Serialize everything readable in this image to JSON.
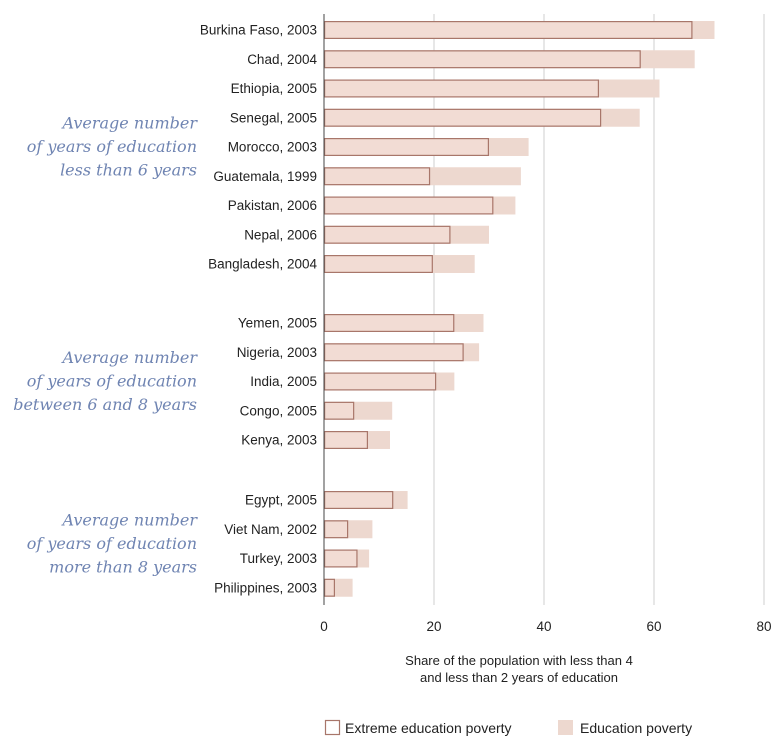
{
  "chart_data": {
    "type": "bar",
    "orientation": "horizontal",
    "xlabel": [
      "Share of the population with less than 4",
      "and less than 2 years of education"
    ],
    "xlim": [
      0,
      80
    ],
    "xticks": [
      0,
      20,
      40,
      60,
      80
    ],
    "grid": true,
    "legend_position": "bottom",
    "colors": {
      "extreme_fill": "#f2dcd4",
      "extreme_stroke": "#a8766a",
      "poverty_fill": "#edd8cf",
      "group_label": "#6f84b2",
      "grid": "#cfcfcf"
    },
    "legend": [
      {
        "key": "extreme",
        "label": "Extreme education poverty"
      },
      {
        "key": "poverty",
        "label": "Education poverty"
      }
    ],
    "groups": [
      {
        "label": [
          "Average number",
          "of years of education",
          "less than 6 years"
        ],
        "categories": [
          {
            "name": "Burkina Faso, 2003",
            "extreme": 67,
            "poverty": 71
          },
          {
            "name": "Chad, 2004",
            "extreme": 57.6,
            "poverty": 67.4
          },
          {
            "name": "Ethiopia, 2005",
            "extreme": 50,
            "poverty": 61
          },
          {
            "name": "Senegal, 2005",
            "extreme": 50.4,
            "poverty": 57.4
          },
          {
            "name": "Morocco, 2003",
            "extreme": 30,
            "poverty": 37.2
          },
          {
            "name": "Guatemala, 1999",
            "extreme": 19.3,
            "poverty": 35.8
          },
          {
            "name": "Pakistan, 2006",
            "extreme": 30.8,
            "poverty": 34.8
          },
          {
            "name": "Nepal, 2006",
            "extreme": 23,
            "poverty": 30
          },
          {
            "name": "Bangladesh, 2004",
            "extreme": 19.8,
            "poverty": 27.4
          }
        ]
      },
      {
        "label": [
          "Average number",
          "of years of education",
          "between 6 and 8 years"
        ],
        "categories": [
          {
            "name": "Yemen, 2005",
            "extreme": 23.7,
            "poverty": 29
          },
          {
            "name": "Nigeria, 2003",
            "extreme": 25.4,
            "poverty": 28.2
          },
          {
            "name": "India, 2005",
            "extreme": 20.4,
            "poverty": 23.7
          },
          {
            "name": "Congo, 2005",
            "extreme": 5.5,
            "poverty": 12.4
          },
          {
            "name": "Kenya, 2003",
            "extreme": 8,
            "poverty": 12
          }
        ]
      },
      {
        "label": [
          "Average number",
          "of years of education",
          "more than 8 years"
        ],
        "categories": [
          {
            "name": "Egypt, 2005",
            "extreme": 12.6,
            "poverty": 15.2
          },
          {
            "name": "Viet Nam, 2002",
            "extreme": 4.4,
            "poverty": 8.8
          },
          {
            "name": "Turkey, 2003",
            "extreme": 6.1,
            "poverty": 8.2
          },
          {
            "name": "Philippines, 2003",
            "extreme": 2,
            "poverty": 5.2
          }
        ]
      }
    ]
  }
}
